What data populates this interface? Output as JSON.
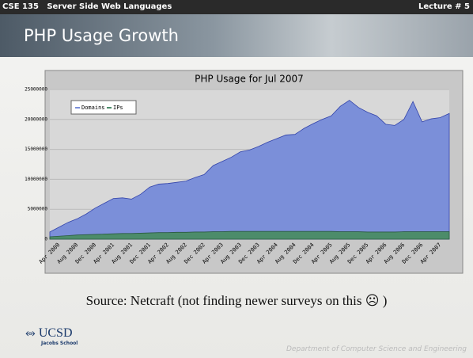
{
  "slide": {
    "course": "CSE 135   Server Side Web Languages",
    "lecture": "Lecture # 5",
    "title": "PHP Usage Growth",
    "source": "Source: Netcraft (not finding newer surveys on this ☹ )",
    "logo": "UCSD",
    "logo_sub": "Jacobs School",
    "footer": "Department of Computer Science and Engineering"
  },
  "chart_data": {
    "type": "area",
    "title": "PHP Usage for Jul 2007",
    "categories": [
      null,
      "Apr 2000",
      null,
      "Aug 2000",
      null,
      "Dec 2000",
      null,
      "Apr 2001",
      null,
      "Aug 2001",
      null,
      "Dec 2001",
      null,
      "Apr 2002",
      null,
      "Aug 2002",
      null,
      "Dec 2002",
      null,
      "Apr 2003",
      null,
      "Aug 2003",
      null,
      "Dec 2003",
      null,
      "Apr 2004",
      null,
      "Aug 2004",
      null,
      "Dec 2004",
      null,
      "Apr 2005",
      null,
      "Aug 2005",
      null,
      "Dec 2005",
      null,
      "Apr 2006",
      null,
      "Aug 2006",
      null,
      "Dec 2006",
      null,
      "Apr 2007",
      null
    ],
    "series": [
      {
        "name": "Domains",
        "color": "#7b8fd9",
        "values": [
          1200000,
          2000000,
          2800000,
          3400000,
          4200000,
          5200000,
          6000000,
          6800000,
          6900000,
          6700000,
          7500000,
          8700000,
          9200000,
          9300000,
          9500000,
          9700000,
          10300000,
          10800000,
          12300000,
          13000000,
          13700000,
          14600000,
          14900000,
          15500000,
          16200000,
          16800000,
          17400000,
          17500000,
          18500000,
          19300000,
          20000000,
          20600000,
          22200000,
          23200000,
          22000000,
          21200000,
          20600000,
          19200000,
          19000000,
          20000000,
          23000000,
          19600000,
          20100000,
          20300000,
          21000000
        ]
      },
      {
        "name": "IPs",
        "color": "#4c8c6a",
        "values": [
          400000,
          500000,
          600000,
          700000,
          750000,
          800000,
          850000,
          900000,
          950000,
          950000,
          1000000,
          1050000,
          1100000,
          1100000,
          1150000,
          1150000,
          1200000,
          1200000,
          1250000,
          1250000,
          1300000,
          1300000,
          1300000,
          1300000,
          1300000,
          1300000,
          1300000,
          1300000,
          1300000,
          1300000,
          1300000,
          1300000,
          1250000,
          1250000,
          1250000,
          1200000,
          1200000,
          1200000,
          1200000,
          1250000,
          1250000,
          1250000,
          1250000,
          1250000,
          1250000
        ]
      }
    ],
    "ylim": [
      0,
      25000000
    ],
    "yticks": [
      0,
      5000000,
      10000000,
      15000000,
      20000000,
      25000000
    ],
    "grid": true,
    "legend": "top-left"
  }
}
